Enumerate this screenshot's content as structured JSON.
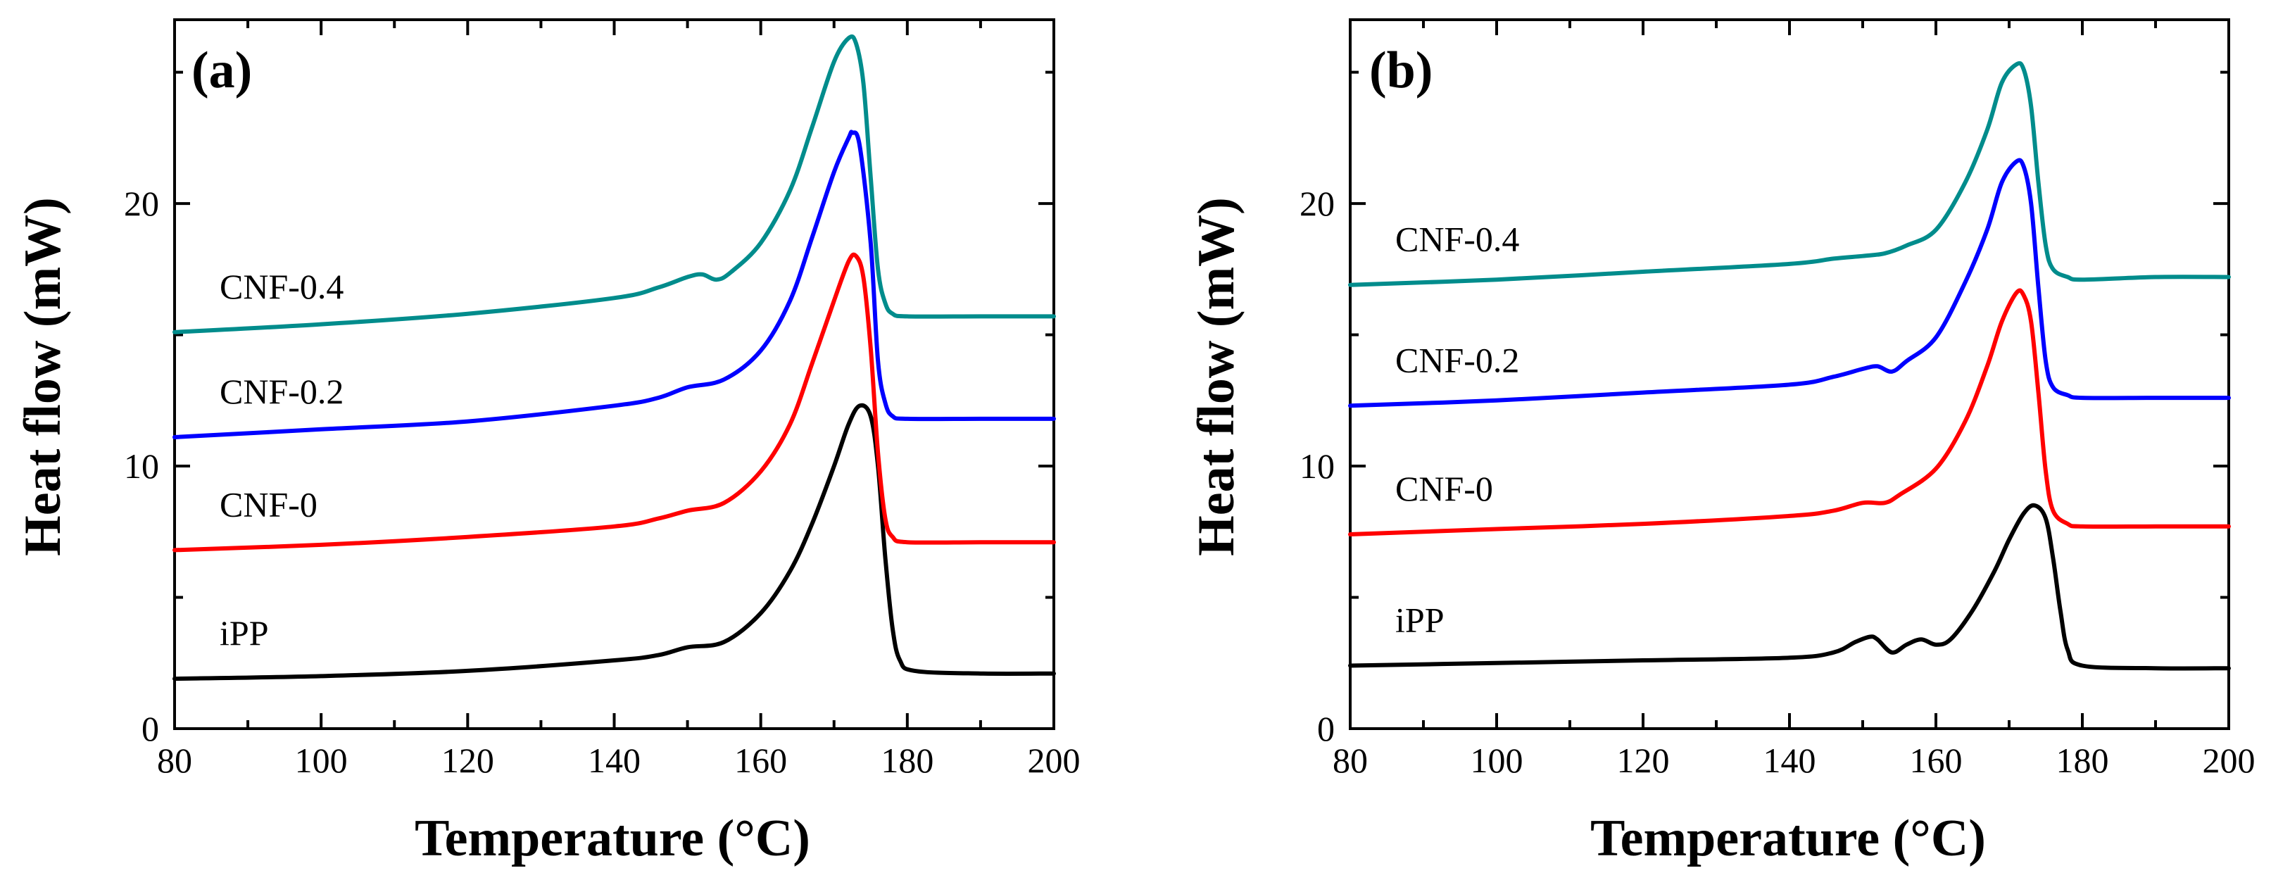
{
  "chart_data": [
    {
      "type": "line",
      "panel_label": "(a)",
      "xlabel": "Temperature (°C)",
      "ylabel": "Heat flow (mW)",
      "xlim": [
        80,
        200
      ],
      "ylim": [
        0,
        27
      ],
      "x_ticks": [
        80,
        100,
        120,
        140,
        160,
        180,
        200
      ],
      "y_ticks": [
        0,
        10,
        20
      ],
      "series": [
        {
          "name": "iPP",
          "color": "#000000",
          "points": [
            [
              80,
              1.9
            ],
            [
              100,
              2.0
            ],
            [
              120,
              2.2
            ],
            [
              140,
              2.6
            ],
            [
              146,
              2.8
            ],
            [
              150,
              3.1
            ],
            [
              155,
              3.3
            ],
            [
              160,
              4.4
            ],
            [
              164,
              6.0
            ],
            [
              167,
              7.8
            ],
            [
              170,
              10.0
            ],
            [
              172,
              11.6
            ],
            [
              173.5,
              12.3
            ],
            [
              175,
              11.9
            ],
            [
              176,
              10.0
            ],
            [
              177,
              6.5
            ],
            [
              178,
              3.8
            ],
            [
              179,
              2.6
            ],
            [
              181,
              2.2
            ],
            [
              190,
              2.1
            ],
            [
              200,
              2.1
            ]
          ]
        },
        {
          "name": "CNF-0",
          "color": "#ff0000",
          "points": [
            [
              80,
              6.8
            ],
            [
              100,
              7.0
            ],
            [
              120,
              7.3
            ],
            [
              140,
              7.7
            ],
            [
              146,
              8.0
            ],
            [
              150,
              8.3
            ],
            [
              155,
              8.6
            ],
            [
              160,
              9.8
            ],
            [
              164,
              11.6
            ],
            [
              167,
              13.9
            ],
            [
              170,
              16.3
            ],
            [
              172,
              17.8
            ],
            [
              173,
              18.0
            ],
            [
              174,
              17.2
            ],
            [
              175,
              14.5
            ],
            [
              176,
              10.5
            ],
            [
              177,
              8.0
            ],
            [
              178,
              7.3
            ],
            [
              180,
              7.1
            ],
            [
              190,
              7.1
            ],
            [
              200,
              7.1
            ]
          ]
        },
        {
          "name": "CNF-0.2",
          "color": "#0000ff",
          "points": [
            [
              80,
              11.1
            ],
            [
              100,
              11.4
            ],
            [
              120,
              11.7
            ],
            [
              140,
              12.3
            ],
            [
              146,
              12.6
            ],
            [
              150,
              13.0
            ],
            [
              155,
              13.3
            ],
            [
              160,
              14.4
            ],
            [
              164,
              16.3
            ],
            [
              167,
              18.7
            ],
            [
              170,
              21.2
            ],
            [
              172,
              22.5
            ],
            [
              172.5,
              22.7
            ],
            [
              173.5,
              22.2
            ],
            [
              175,
              18.5
            ],
            [
              176,
              14.0
            ],
            [
              177,
              12.4
            ],
            [
              178,
              11.9
            ],
            [
              180,
              11.8
            ],
            [
              190,
              11.8
            ],
            [
              200,
              11.8
            ]
          ]
        },
        {
          "name": "CNF-0.4",
          "color": "#008c8c",
          "points": [
            [
              80,
              15.1
            ],
            [
              100,
              15.4
            ],
            [
              120,
              15.8
            ],
            [
              140,
              16.4
            ],
            [
              146,
              16.8
            ],
            [
              150,
              17.2
            ],
            [
              152,
              17.3
            ],
            [
              154,
              17.1
            ],
            [
              156,
              17.4
            ],
            [
              160,
              18.5
            ],
            [
              164,
              20.5
            ],
            [
              167,
              22.9
            ],
            [
              170,
              25.4
            ],
            [
              172,
              26.3
            ],
            [
              173,
              26.1
            ],
            [
              174,
              24.6
            ],
            [
              175,
              21.0
            ],
            [
              176,
              17.5
            ],
            [
              177,
              16.2
            ],
            [
              178,
              15.8
            ],
            [
              180,
              15.7
            ],
            [
              190,
              15.7
            ],
            [
              200,
              15.7
            ]
          ]
        }
      ]
    },
    {
      "type": "line",
      "panel_label": "(b)",
      "xlabel": "Temperature (°C)",
      "ylabel": "Heat flow (mW)",
      "xlim": [
        80,
        200
      ],
      "ylim": [
        0,
        27
      ],
      "x_ticks": [
        80,
        100,
        120,
        140,
        160,
        180,
        200
      ],
      "y_ticks": [
        0,
        10,
        20
      ],
      "series": [
        {
          "name": "iPP",
          "color": "#000000",
          "points": [
            [
              80,
              2.4
            ],
            [
              100,
              2.5
            ],
            [
              120,
              2.6
            ],
            [
              140,
              2.7
            ],
            [
              146,
              2.9
            ],
            [
              149,
              3.3
            ],
            [
              151,
              3.5
            ],
            [
              152,
              3.4
            ],
            [
              154,
              2.9
            ],
            [
              156,
              3.2
            ],
            [
              158,
              3.4
            ],
            [
              160,
              3.2
            ],
            [
              162,
              3.4
            ],
            [
              165,
              4.5
            ],
            [
              168,
              6.0
            ],
            [
              170,
              7.2
            ],
            [
              172,
              8.2
            ],
            [
              173.5,
              8.5
            ],
            [
              175,
              8.0
            ],
            [
              176,
              6.5
            ],
            [
              177,
              4.5
            ],
            [
              178,
              3.0
            ],
            [
              180,
              2.4
            ],
            [
              190,
              2.3
            ],
            [
              200,
              2.3
            ]
          ]
        },
        {
          "name": "CNF-0",
          "color": "#ff0000",
          "points": [
            [
              80,
              7.4
            ],
            [
              100,
              7.6
            ],
            [
              120,
              7.8
            ],
            [
              140,
              8.1
            ],
            [
              146,
              8.3
            ],
            [
              150,
              8.6
            ],
            [
              153,
              8.6
            ],
            [
              155,
              8.9
            ],
            [
              160,
              9.9
            ],
            [
              164,
              11.7
            ],
            [
              167,
              13.8
            ],
            [
              169,
              15.5
            ],
            [
              171,
              16.6
            ],
            [
              172,
              16.5
            ],
            [
              173,
              15.5
            ],
            [
              174,
              12.8
            ],
            [
              175,
              9.8
            ],
            [
              176,
              8.3
            ],
            [
              178,
              7.8
            ],
            [
              180,
              7.7
            ],
            [
              190,
              7.7
            ],
            [
              200,
              7.7
            ]
          ]
        },
        {
          "name": "CNF-0.2",
          "color": "#0000ff",
          "points": [
            [
              80,
              12.3
            ],
            [
              100,
              12.5
            ],
            [
              120,
              12.8
            ],
            [
              140,
              13.1
            ],
            [
              146,
              13.4
            ],
            [
              150,
              13.7
            ],
            [
              152,
              13.8
            ],
            [
              154,
              13.6
            ],
            [
              156,
              14.0
            ],
            [
              160,
              14.9
            ],
            [
              164,
              17.0
            ],
            [
              167,
              19.0
            ],
            [
              169,
              20.8
            ],
            [
              171,
              21.6
            ],
            [
              172,
              21.4
            ],
            [
              173,
              20.0
            ],
            [
              174,
              16.8
            ],
            [
              175,
              14.0
            ],
            [
              176,
              13.0
            ],
            [
              178,
              12.7
            ],
            [
              180,
              12.6
            ],
            [
              190,
              12.6
            ],
            [
              200,
              12.6
            ]
          ]
        },
        {
          "name": "CNF-0.4",
          "color": "#008c8c",
          "points": [
            [
              80,
              16.9
            ],
            [
              100,
              17.1
            ],
            [
              120,
              17.4
            ],
            [
              140,
              17.7
            ],
            [
              146,
              17.9
            ],
            [
              150,
              18.0
            ],
            [
              153,
              18.1
            ],
            [
              156,
              18.4
            ],
            [
              160,
              19.0
            ],
            [
              164,
              20.8
            ],
            [
              167,
              22.8
            ],
            [
              169,
              24.6
            ],
            [
              171,
              25.3
            ],
            [
              172,
              25.1
            ],
            [
              173,
              23.7
            ],
            [
              174,
              20.8
            ],
            [
              175,
              18.4
            ],
            [
              176,
              17.5
            ],
            [
              178,
              17.2
            ],
            [
              180,
              17.1
            ],
            [
              190,
              17.2
            ],
            [
              200,
              17.2
            ]
          ]
        }
      ]
    }
  ]
}
